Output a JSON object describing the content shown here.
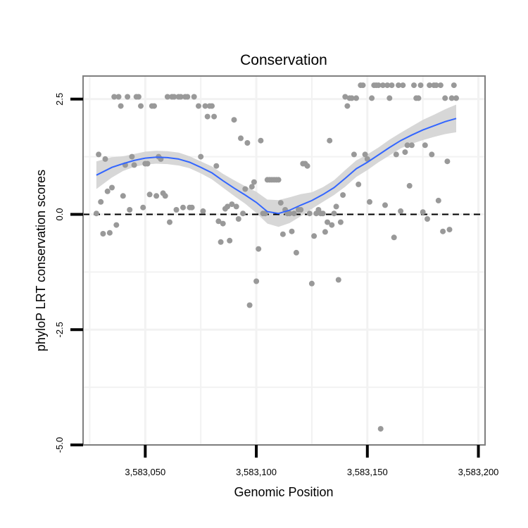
{
  "chart_data": {
    "type": "scatter",
    "title": "Conservation",
    "xlabel": "Genomic Position",
    "ylabel": "phyloP LRT conservation scores",
    "xlim": [
      3583022,
      3583203
    ],
    "ylim": [
      -5.0,
      3.0
    ],
    "x_ticks": [
      3583050,
      3583100,
      3583150,
      3583200
    ],
    "x_tick_labels": [
      "3,583,050",
      "3,583,100",
      "3,583,150",
      "3,583,200"
    ],
    "y_ticks": [
      -5.0,
      -2.5,
      0.0,
      2.5
    ],
    "y_tick_labels": [
      "-5.0",
      "-2.5",
      "0.0",
      "2.5"
    ],
    "x_minor_grid": [
      3583025,
      3583075,
      3583125,
      3583175
    ],
    "y_minor_grid": [
      -3.75,
      -1.25,
      1.25
    ],
    "reference_line": {
      "y": 0,
      "style": "dashed"
    },
    "colors": {
      "points": "#999999",
      "smooth": "#3366ff",
      "band": "#d3d3d3",
      "grid": "#f2f2f2",
      "frame": "#7f7f7f"
    },
    "points": [
      [
        3583028,
        0.02
      ],
      [
        3583029,
        1.3
      ],
      [
        3583030,
        0.27
      ],
      [
        3583031,
        -0.42
      ],
      [
        3583032,
        1.2
      ],
      [
        3583033,
        0.5
      ],
      [
        3583034,
        -0.4
      ],
      [
        3583035,
        0.58
      ],
      [
        3583036,
        2.55
      ],
      [
        3583037,
        -0.23
      ],
      [
        3583038,
        2.55
      ],
      [
        3583039,
        2.35
      ],
      [
        3583040,
        0.4
      ],
      [
        3583041,
        1.07
      ],
      [
        3583042,
        2.55
      ],
      [
        3583043,
        0.1
      ],
      [
        3583044,
        1.25
      ],
      [
        3583045,
        1.07
      ],
      [
        3583046,
        2.55
      ],
      [
        3583047,
        2.55
      ],
      [
        3583048,
        2.35
      ],
      [
        3583049,
        0.15
      ],
      [
        3583050,
        1.1
      ],
      [
        3583051,
        1.1
      ],
      [
        3583052,
        0.43
      ],
      [
        3583053,
        2.35
      ],
      [
        3583054,
        2.35
      ],
      [
        3583055,
        0.4
      ],
      [
        3583056,
        1.25
      ],
      [
        3583057,
        1.2
      ],
      [
        3583058,
        0.46
      ],
      [
        3583059,
        0.4
      ],
      [
        3583060,
        2.55
      ],
      [
        3583061,
        -0.17
      ],
      [
        3583062,
        2.55
      ],
      [
        3583063,
        2.55
      ],
      [
        3583064,
        0.1
      ],
      [
        3583065,
        2.55
      ],
      [
        3583066,
        2.55
      ],
      [
        3583067,
        0.15
      ],
      [
        3583068,
        2.55
      ],
      [
        3583069,
        2.55
      ],
      [
        3583070,
        0.15
      ],
      [
        3583071,
        0.15
      ],
      [
        3583072,
        2.55
      ],
      [
        3583074,
        2.35
      ],
      [
        3583075,
        1.25
      ],
      [
        3583076,
        0.07
      ],
      [
        3583077,
        2.35
      ],
      [
        3583078,
        2.12
      ],
      [
        3583079,
        2.35
      ],
      [
        3583080,
        2.35
      ],
      [
        3583081,
        2.12
      ],
      [
        3583082,
        1.05
      ],
      [
        3583083,
        -0.15
      ],
      [
        3583084,
        -0.6
      ],
      [
        3583085,
        -0.2
      ],
      [
        3583086,
        0.12
      ],
      [
        3583087,
        0.17
      ],
      [
        3583088,
        -0.57
      ],
      [
        3583089,
        0.22
      ],
      [
        3583090,
        2.05
      ],
      [
        3583091,
        0.17
      ],
      [
        3583092,
        -0.1
      ],
      [
        3583093,
        1.65
      ],
      [
        3583094,
        0.02
      ],
      [
        3583095,
        0.55
      ],
      [
        3583096,
        1.55
      ],
      [
        3583097,
        -1.97
      ],
      [
        3583098,
        0.6
      ],
      [
        3583099,
        0.7
      ],
      [
        3583100,
        -1.45
      ],
      [
        3583101,
        -0.75
      ],
      [
        3583102,
        1.6
      ],
      [
        3583103,
        0.02
      ],
      [
        3583104,
        0.02
      ],
      [
        3583105,
        0.75
      ],
      [
        3583106,
        0.75
      ],
      [
        3583107,
        0.75
      ],
      [
        3583108,
        0.75
      ],
      [
        3583109,
        0.75
      ],
      [
        3583110,
        0.75
      ],
      [
        3583111,
        0.25
      ],
      [
        3583112,
        -0.43
      ],
      [
        3583113,
        0.1
      ],
      [
        3583114,
        0.02
      ],
      [
        3583115,
        0.02
      ],
      [
        3583116,
        -0.37
      ],
      [
        3583117,
        0.02
      ],
      [
        3583118,
        -0.83
      ],
      [
        3583119,
        0.1
      ],
      [
        3583120,
        0.1
      ],
      [
        3583121,
        1.1
      ],
      [
        3583122,
        1.1
      ],
      [
        3583123,
        1.05
      ],
      [
        3583124,
        0.02
      ],
      [
        3583125,
        -1.5
      ],
      [
        3583126,
        -0.47
      ],
      [
        3583127,
        0.02
      ],
      [
        3583128,
        0.1
      ],
      [
        3583129,
        0.02
      ],
      [
        3583130,
        0.02
      ],
      [
        3583131,
        -0.38
      ],
      [
        3583132,
        -0.17
      ],
      [
        3583133,
        1.6
      ],
      [
        3583134,
        -0.23
      ],
      [
        3583135,
        0.02
      ],
      [
        3583136,
        0.17
      ],
      [
        3583137,
        -1.42
      ],
      [
        3583138,
        -0.17
      ],
      [
        3583139,
        0.42
      ],
      [
        3583140,
        2.55
      ],
      [
        3583141,
        2.35
      ],
      [
        3583142,
        2.52
      ],
      [
        3583143,
        2.52
      ],
      [
        3583144,
        1.3
      ],
      [
        3583145,
        2.52
      ],
      [
        3583146,
        0.65
      ],
      [
        3583147,
        2.8
      ],
      [
        3583148,
        2.8
      ],
      [
        3583149,
        1.3
      ],
      [
        3583150,
        1.2
      ],
      [
        3583151,
        0.27
      ],
      [
        3583152,
        2.52
      ],
      [
        3583153,
        2.8
      ],
      [
        3583154,
        2.8
      ],
      [
        3583155,
        2.8
      ],
      [
        3583156,
        -4.65
      ],
      [
        3583157,
        2.8
      ],
      [
        3583158,
        0.2
      ],
      [
        3583159,
        2.8
      ],
      [
        3583160,
        2.52
      ],
      [
        3583161,
        2.8
      ],
      [
        3583162,
        -0.5
      ],
      [
        3583163,
        1.3
      ],
      [
        3583164,
        2.8
      ],
      [
        3583165,
        0.07
      ],
      [
        3583166,
        2.8
      ],
      [
        3583167,
        1.35
      ],
      [
        3583168,
        1.5
      ],
      [
        3583169,
        0.62
      ],
      [
        3583170,
        1.5
      ],
      [
        3583171,
        2.8
      ],
      [
        3583172,
        2.52
      ],
      [
        3583173,
        2.52
      ],
      [
        3583174,
        2.8
      ],
      [
        3583175,
        0.05
      ],
      [
        3583176,
        1.5
      ],
      [
        3583177,
        -0.1
      ],
      [
        3583178,
        2.8
      ],
      [
        3583179,
        1.3
      ],
      [
        3583180,
        2.8
      ],
      [
        3583181,
        2.8
      ],
      [
        3583182,
        0.3
      ],
      [
        3583183,
        2.8
      ],
      [
        3583184,
        -0.37
      ],
      [
        3583185,
        2.52
      ],
      [
        3583186,
        1.15
      ],
      [
        3583187,
        -0.33
      ],
      [
        3583188,
        2.52
      ],
      [
        3583189,
        2.8
      ],
      [
        3583190,
        2.52
      ]
    ],
    "smooth": {
      "x": [
        3583028,
        3583035,
        3583040,
        3583045,
        3583050,
        3583055,
        3583060,
        3583065,
        3583070,
        3583075,
        3583080,
        3583085,
        3583090,
        3583095,
        3583100,
        3583105,
        3583110,
        3583115,
        3583120,
        3583125,
        3583130,
        3583135,
        3583140,
        3583145,
        3583150,
        3583155,
        3583160,
        3583165,
        3583170,
        3583175,
        3583180,
        3583185,
        3583190
      ],
      "y": [
        0.85,
        1.02,
        1.1,
        1.17,
        1.22,
        1.24,
        1.23,
        1.2,
        1.13,
        1.02,
        0.9,
        0.73,
        0.57,
        0.42,
        0.26,
        0.06,
        0.02,
        0.09,
        0.2,
        0.3,
        0.43,
        0.58,
        0.78,
        0.99,
        1.13,
        1.29,
        1.45,
        1.6,
        1.72,
        1.83,
        1.92,
        2.01,
        2.08
      ],
      "lo": [
        0.55,
        0.8,
        0.94,
        1.03,
        1.08,
        1.1,
        1.09,
        1.06,
        1.0,
        0.89,
        0.76,
        0.58,
        0.4,
        0.23,
        0.03,
        -0.2,
        -0.27,
        -0.19,
        -0.04,
        0.12,
        0.27,
        0.42,
        0.6,
        0.81,
        0.96,
        1.13,
        1.28,
        1.43,
        1.53,
        1.61,
        1.68,
        1.74,
        1.78
      ],
      "hi": [
        1.15,
        1.24,
        1.26,
        1.31,
        1.36,
        1.38,
        1.37,
        1.34,
        1.26,
        1.15,
        1.04,
        0.88,
        0.74,
        0.61,
        0.49,
        0.32,
        0.31,
        0.37,
        0.44,
        0.48,
        0.59,
        0.74,
        0.96,
        1.17,
        1.3,
        1.45,
        1.62,
        1.77,
        1.91,
        2.05,
        2.16,
        2.28,
        2.38
      ]
    }
  }
}
